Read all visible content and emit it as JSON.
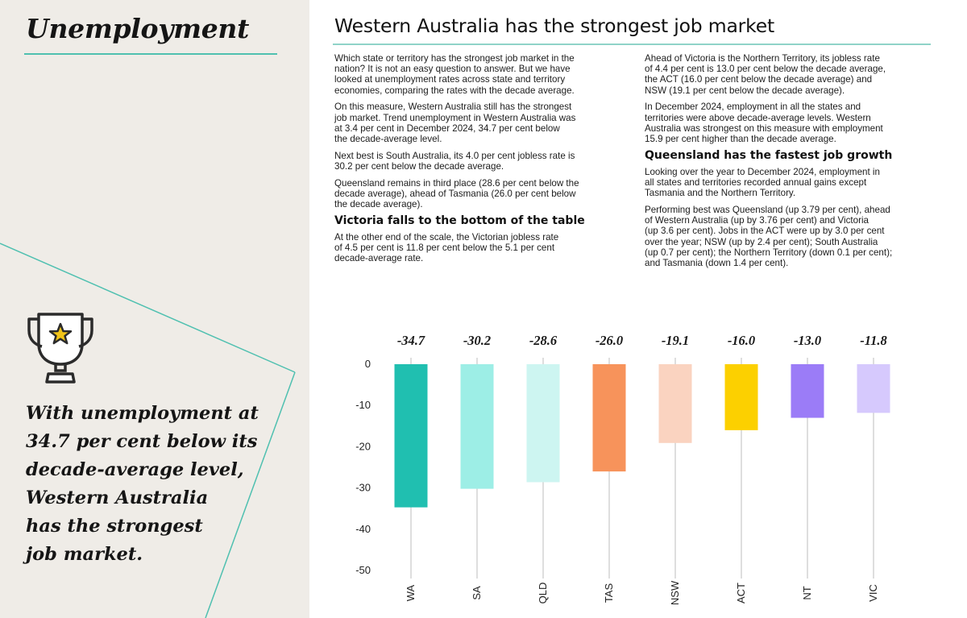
{
  "sidebar": {
    "title": "Unemployment",
    "callout_lines": [
      "With unemployment at",
      "34.7 per cent below its",
      "decade-average level,",
      "Western Australia",
      "has the strongest",
      "job market."
    ],
    "accent_color": "#4fc0b0",
    "icon": "trophy-star-icon"
  },
  "main": {
    "title": "Western Australia has the strongest job market",
    "left_column": [
      {
        "type": "p",
        "lines": [
          "Which state or territory has the strongest job market in the",
          "nation? It is not an easy question to answer. But we have",
          "looked at unemployment rates across state and territory",
          "economies, comparing the rates with the decade average."
        ]
      },
      {
        "type": "p",
        "lines": [
          "On this measure, Western Australia still has the strongest",
          "job market. Trend unemployment in Western Australia was",
          "at 3.4 per cent in December 2024, 34.7 per cent below",
          "the decade-average level."
        ]
      },
      {
        "type": "p",
        "lines": [
          "Next best is South Australia, its 4.0 per cent jobless rate is",
          "30.2 per cent below the decade average."
        ]
      },
      {
        "type": "p",
        "lines": [
          "Queensland remains in third place (28.6 per cent below the",
          "decade average), ahead of Tasmania (26.0 per cent below",
          "the decade average)."
        ]
      },
      {
        "type": "h",
        "text": "Victoria falls to the bottom of the table"
      },
      {
        "type": "p",
        "lines": [
          "At the other end of the scale, the Victorian jobless rate",
          "of 4.5 per cent is 11.8 per cent below the 5.1 per cent",
          "decade-average rate."
        ]
      }
    ],
    "right_column": [
      {
        "type": "p",
        "lines": [
          "Ahead of Victoria is the Northern Territory, its jobless rate",
          "of 4.4 per cent is 13.0 per cent below the decade average,",
          "the ACT (16.0 per cent below the decade average) and",
          "NSW (19.1 per cent below the decade average)."
        ]
      },
      {
        "type": "p",
        "lines": [
          "In December 2024, employment in all the states and",
          "territories were above decade-average levels. Western",
          "Australia was strongest on this measure with employment",
          "15.9 per cent higher than the decade average."
        ]
      },
      {
        "type": "h",
        "text": "Queensland has the fastest job growth"
      },
      {
        "type": "p",
        "lines": [
          "Looking over the year to December 2024, employment in",
          "all states and territories recorded annual gains except",
          "Tasmania and the Northern Territory."
        ]
      },
      {
        "type": "p",
        "lines": [
          "Performing best was Queensland (up 3.79 per cent), ahead",
          "of Western Australia (up by 3.76 per cent) and Victoria",
          "(up 3.6 per cent). Jobs in the ACT were up by 3.0 per cent",
          "over the year; NSW (up by 2.4 per cent); South Australia",
          "(up 0.7 per cent); the Northern Territory (down 0.1 per cent);",
          "and Tasmania (down 1.4 per cent)."
        ]
      }
    ]
  },
  "chart_data": {
    "type": "bar",
    "title": "",
    "xlabel": "",
    "ylabel": "",
    "categories": [
      "WA",
      "SA",
      "QLD",
      "TAS",
      "NSW",
      "ACT",
      "NT",
      "VIC"
    ],
    "values": [
      -34.7,
      -30.2,
      -28.6,
      -26.0,
      -19.1,
      -16.0,
      -13.0,
      -11.8
    ],
    "value_labels": [
      "-34.7",
      "-30.2",
      "-28.6",
      "-26.0",
      "-19.1",
      "-16.0",
      "-13.0",
      "-11.8"
    ],
    "colors": [
      "#20bfb0",
      "#9deee6",
      "#cdf5f1",
      "#f7935b",
      "#fad3c0",
      "#fcd000",
      "#9b7cf7",
      "#d6c9fd"
    ],
    "yticks": [
      0,
      -10,
      -20,
      -30,
      -40,
      -50
    ],
    "ylim": [
      -50,
      0
    ],
    "grid": false,
    "legend": "none"
  }
}
